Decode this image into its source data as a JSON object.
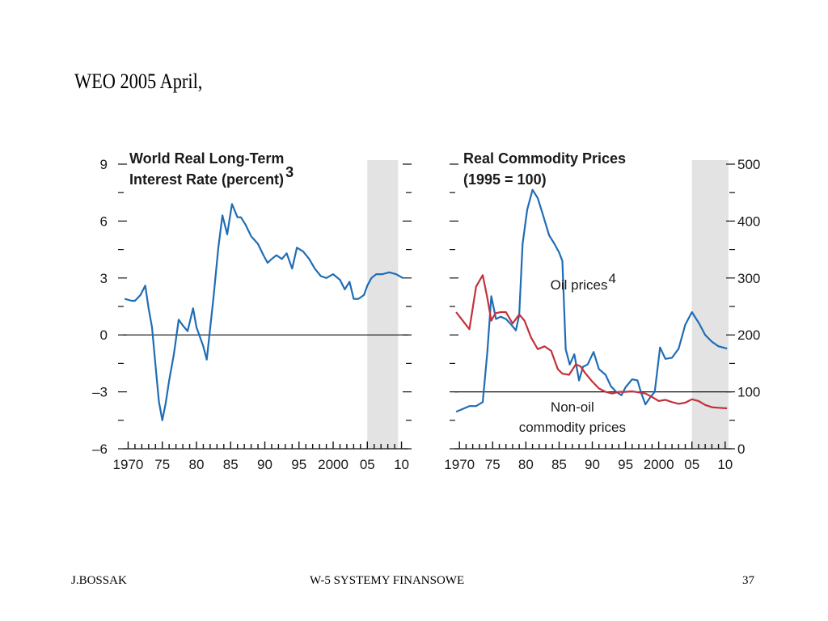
{
  "slide": {
    "title": "WEO 2005 April,"
  },
  "footer": {
    "left": "J.BOSSAK",
    "center": "W-5 SYSTEMY  FINANSOWE",
    "page_number": "37"
  },
  "colors": {
    "blue_series": "#1f6db5",
    "red_series": "#c4303a",
    "forecast_shade": "#e3e3e3"
  },
  "chart_data": [
    {
      "type": "line",
      "title": [
        "World Real Long-Term",
        "Interest Rate (percent)"
      ],
      "title_superscript": "3",
      "ylim": [
        -6,
        9
      ],
      "yticks": [
        9,
        6,
        3,
        0,
        -3,
        -6
      ],
      "ytick_labels": [
        "9",
        "6",
        "3",
        "0",
        "–3",
        "–6"
      ],
      "xlim": [
        1969,
        2011
      ],
      "xticks": [
        1970,
        1975,
        1980,
        1985,
        1990,
        1995,
        2000,
        2005,
        2010
      ],
      "xtick_labels": [
        "1970",
        "75",
        "80",
        "85",
        "90",
        "95",
        "2000",
        "05",
        "10"
      ],
      "shaded_forecast": [
        2005,
        2009.5
      ],
      "reference_line": 0,
      "series": [
        {
          "color": "#1f6db5",
          "x": [
            1969.5,
            1970.5,
            1971,
            1971.8,
            1972.5,
            1973,
            1973.5,
            1974,
            1974.5,
            1975,
            1975.5,
            1976,
            1976.7,
            1977.4,
            1978,
            1978.7,
            1979.5,
            1980,
            1981,
            1981.5,
            1982.5,
            1983.2,
            1983.8,
            1984.5,
            1985.2,
            1986,
            1986.5,
            1987.2,
            1988,
            1988.5,
            1989,
            1989.8,
            1990.4,
            1991,
            1991.7,
            1992.5,
            1993.2,
            1994,
            1994.7,
            1995.6,
            1996.5,
            1997.3,
            1998.2,
            1999,
            2000,
            2001,
            2001.7,
            2002.4,
            2003,
            2003.7,
            2004.5,
            2005,
            2005.6,
            2006.3,
            2007.2,
            2008.2,
            2009.2,
            2010.2
          ],
          "values": [
            1.9,
            1.8,
            1.8,
            2.1,
            2.6,
            1.4,
            0.4,
            -1.6,
            -3.5,
            -4.5,
            -3.6,
            -2.4,
            -1.0,
            0.8,
            0.5,
            0.2,
            1.4,
            0.4,
            -0.6,
            -1.3,
            2.0,
            4.6,
            6.3,
            5.3,
            6.9,
            6.2,
            6.2,
            5.8,
            5.2,
            5.0,
            4.8,
            4.2,
            3.8,
            4.0,
            4.2,
            4.0,
            4.3,
            3.5,
            4.6,
            4.4,
            4.0,
            3.5,
            3.1,
            3.0,
            3.2,
            2.9,
            2.4,
            2.8,
            1.9,
            1.9,
            2.1,
            2.6,
            3.0,
            3.2,
            3.2,
            3.3,
            3.2,
            3.0
          ]
        }
      ]
    },
    {
      "type": "line",
      "title": [
        "Real Commodity Prices",
        "(1995 = 100)"
      ],
      "ylim": [
        0,
        500
      ],
      "yticks": [
        500,
        400,
        300,
        200,
        100,
        0
      ],
      "ytick_labels": [
        "500",
        "400",
        "300",
        "200",
        "100",
        "0"
      ],
      "y_axis_side": "right",
      "xlim": [
        1969,
        2011
      ],
      "xticks": [
        1970,
        1975,
        1980,
        1985,
        1990,
        1995,
        2000,
        2005,
        2010
      ],
      "xtick_labels": [
        "1970",
        "75",
        "80",
        "85",
        "90",
        "95",
        "2000",
        "05",
        "10"
      ],
      "shaded_forecast": [
        2005,
        2010.5
      ],
      "reference_line": 100,
      "annotations": [
        {
          "text": "Oil prices",
          "superscript": "4",
          "at": [
            1988,
            280
          ]
        },
        {
          "text": "Non-oil",
          "at": [
            1987,
            65
          ]
        },
        {
          "text": "commodity prices",
          "at": [
            1987,
            30
          ]
        }
      ],
      "series": [
        {
          "name": "Oil prices",
          "color": "#1f6db5",
          "x": [
            1969.5,
            1970.5,
            1971.5,
            1972.5,
            1973.5,
            1974.2,
            1974.8,
            1975.5,
            1976.2,
            1977,
            1977.8,
            1978.5,
            1979,
            1979.5,
            1980.2,
            1981,
            1981.8,
            1982.6,
            1983.5,
            1984.3,
            1985,
            1985.5,
            1986,
            1986.6,
            1987.3,
            1988,
            1988.6,
            1989.3,
            1990.2,
            1991,
            1992,
            1992.8,
            1993.6,
            1994.4,
            1995,
            1996,
            1996.8,
            1997.3,
            1998,
            1998.7,
            1999.4,
            2000.2,
            2001,
            2002,
            2003,
            2004,
            2005,
            2006.1,
            2007,
            2008,
            2009,
            2010.3
          ],
          "values": [
            65,
            70,
            75,
            75,
            82,
            170,
            268,
            228,
            232,
            228,
            218,
            208,
            235,
            360,
            420,
            455,
            440,
            410,
            375,
            360,
            345,
            330,
            175,
            148,
            166,
            120,
            144,
            148,
            170,
            140,
            130,
            110,
            100,
            94,
            108,
            122,
            120,
            100,
            78,
            90,
            100,
            178,
            158,
            160,
            176,
            218,
            240,
            220,
            200,
            188,
            180,
            176
          ]
        },
        {
          "name": "Non-oil commodity prices",
          "color": "#c4303a",
          "x": [
            1969.5,
            1970.5,
            1971.5,
            1972.5,
            1973.5,
            1974.2,
            1974.8,
            1975.4,
            1976.2,
            1977,
            1978,
            1979,
            1979.8,
            1980.8,
            1981.8,
            1982.8,
            1983.8,
            1984.8,
            1985.5,
            1986.5,
            1987.5,
            1988.2,
            1989,
            1990,
            1991,
            1992,
            1993,
            1994,
            1995,
            1996,
            1997,
            1998,
            1999,
            2000,
            2001,
            2002,
            2003,
            2004,
            2005,
            2006,
            2007,
            2008,
            2009,
            2010.3
          ],
          "values": [
            240,
            225,
            210,
            285,
            305,
            265,
            225,
            238,
            240,
            240,
            220,
            236,
            225,
            195,
            175,
            180,
            172,
            140,
            132,
            130,
            148,
            145,
            132,
            118,
            106,
            100,
            97,
            100,
            100,
            101,
            99,
            97,
            91,
            84,
            86,
            82,
            79,
            81,
            87,
            84,
            77,
            73,
            72,
            71
          ]
        }
      ]
    }
  ]
}
